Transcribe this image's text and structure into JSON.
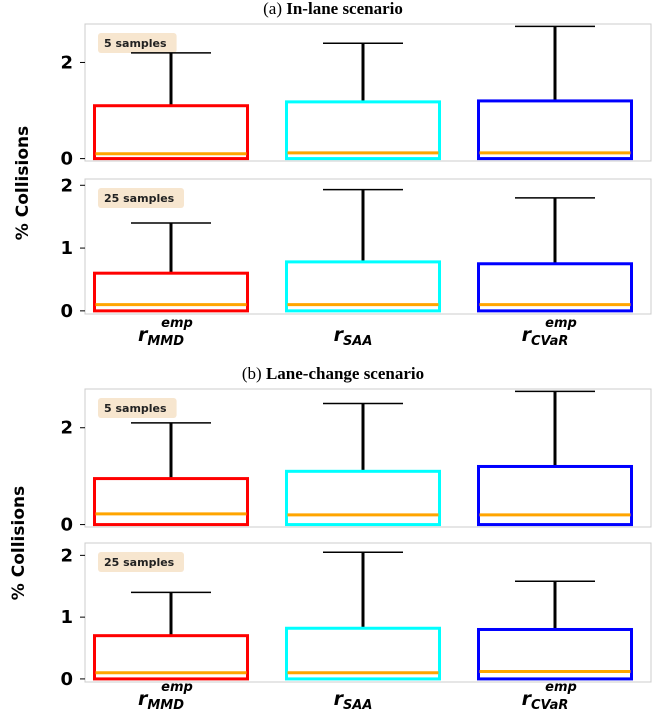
{
  "colors": {
    "median": "#ffa500",
    "whisker": "#000000",
    "badge_bg": "#f7e6cf",
    "frame": "#cccccc"
  },
  "chart_data": {
    "type": "box",
    "ylabel": "% Collisions",
    "categories": [
      {
        "base": "r",
        "sub": "MMD",
        "sup": "emp",
        "color": "#ff0000"
      },
      {
        "base": "r",
        "sub": "SAA",
        "sup": "",
        "color": "#00ffff"
      },
      {
        "base": "r",
        "sub": "CVaR",
        "sup": "emp",
        "color": "#0000ff"
      }
    ],
    "panels": [
      {
        "caption_prefix": "(a)",
        "caption": "In-lane scenario",
        "subplots": [
          {
            "badge": "5 samples",
            "ylim": [
              -0.05,
              2.8
            ],
            "yticks": [
              "0",
              "2"
            ],
            "ytick_values": [
              0,
              2
            ],
            "boxes": [
              {
                "whislo": 0.0,
                "q1": 0.0,
                "med": 0.1,
                "q3": 1.1,
                "whishi": 2.2
              },
              {
                "whislo": 0.0,
                "q1": 0.0,
                "med": 0.12,
                "q3": 1.18,
                "whishi": 2.4
              },
              {
                "whislo": 0.0,
                "q1": 0.0,
                "med": 0.12,
                "q3": 1.2,
                "whishi": 2.75
              }
            ]
          },
          {
            "badge": "25 samples",
            "ylim": [
              -0.05,
              2.1
            ],
            "yticks": [
              "0",
              "1",
              "2"
            ],
            "ytick_values": [
              0,
              1,
              2
            ],
            "boxes": [
              {
                "whislo": 0.0,
                "q1": 0.0,
                "med": 0.1,
                "q3": 0.6,
                "whishi": 1.4
              },
              {
                "whislo": 0.0,
                "q1": 0.0,
                "med": 0.1,
                "q3": 0.78,
                "whishi": 1.93
              },
              {
                "whislo": 0.0,
                "q1": 0.0,
                "med": 0.1,
                "q3": 0.75,
                "whishi": 1.8
              }
            ]
          }
        ]
      },
      {
        "caption_prefix": "(b)",
        "caption": "Lane-change scenario",
        "subplots": [
          {
            "badge": "5 samples",
            "ylim": [
              -0.05,
              2.8
            ],
            "yticks": [
              "0",
              "2"
            ],
            "ytick_values": [
              0,
              2
            ],
            "boxes": [
              {
                "whislo": 0.0,
                "q1": 0.0,
                "med": 0.22,
                "q3": 0.95,
                "whishi": 2.1
              },
              {
                "whislo": 0.0,
                "q1": 0.0,
                "med": 0.2,
                "q3": 1.1,
                "whishi": 2.5
              },
              {
                "whislo": 0.0,
                "q1": 0.0,
                "med": 0.2,
                "q3": 1.2,
                "whishi": 2.75
              }
            ]
          },
          {
            "badge": "25 samples",
            "ylim": [
              -0.05,
              2.2
            ],
            "yticks": [
              "0",
              "1",
              "2"
            ],
            "ytick_values": [
              0,
              1,
              2
            ],
            "boxes": [
              {
                "whislo": 0.0,
                "q1": 0.0,
                "med": 0.1,
                "q3": 0.7,
                "whishi": 1.4
              },
              {
                "whislo": 0.0,
                "q1": 0.0,
                "med": 0.1,
                "q3": 0.82,
                "whishi": 2.05
              },
              {
                "whislo": 0.0,
                "q1": 0.0,
                "med": 0.12,
                "q3": 0.8,
                "whishi": 1.58
              }
            ]
          }
        ]
      }
    ]
  }
}
